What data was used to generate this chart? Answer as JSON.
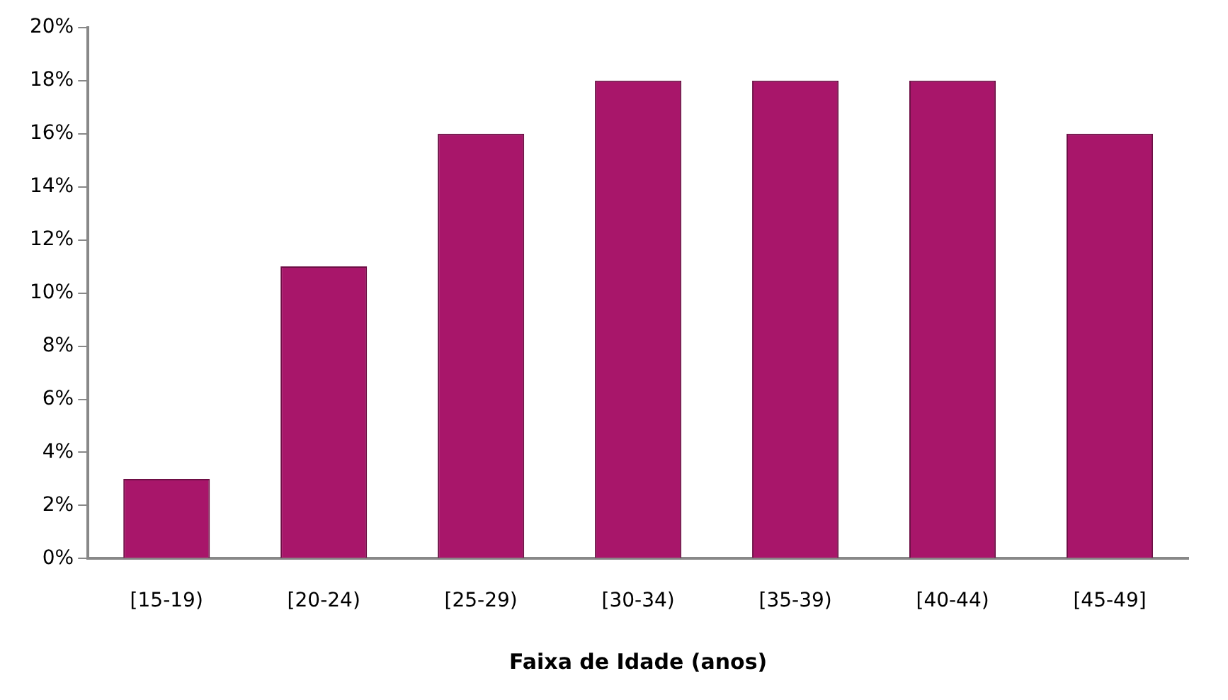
{
  "chart_data": {
    "type": "bar",
    "xlabel": "Faixa de Idade (anos)",
    "categories": [
      "[15-19)",
      "[20-24)",
      "[25-29)",
      "[30-34)",
      "[35-39)",
      "[40-44)",
      "[45-49]"
    ],
    "values": [
      3,
      11,
      16,
      18,
      18,
      18,
      16
    ],
    "color": "#a8166a",
    "ylim": [
      0,
      20
    ],
    "yticks": [
      {
        "value": 0,
        "label": "0%"
      },
      {
        "value": 2,
        "label": "2%"
      },
      {
        "value": 4,
        "label": "4%"
      },
      {
        "value": 6,
        "label": "6%"
      },
      {
        "value": 8,
        "label": "8%"
      },
      {
        "value": 10,
        "label": "10%"
      },
      {
        "value": 12,
        "label": "12%"
      },
      {
        "value": 14,
        "label": "14%"
      },
      {
        "value": 16,
        "label": "16%"
      },
      {
        "value": 18,
        "label": "18%"
      },
      {
        "value": 20,
        "label": "20%"
      }
    ],
    "grid": false,
    "legend": false
  }
}
